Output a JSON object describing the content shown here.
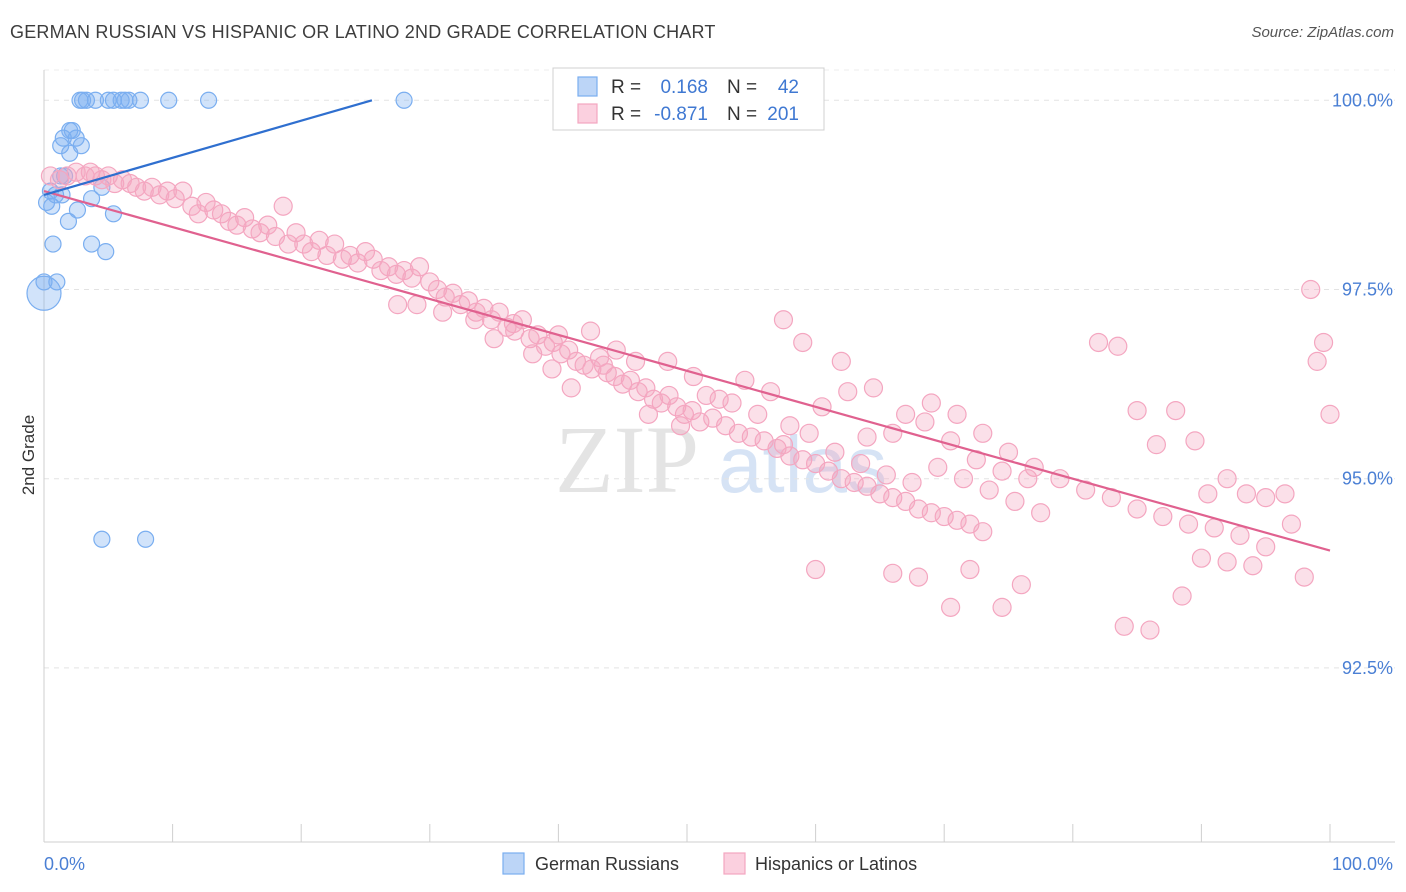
{
  "title": "GERMAN RUSSIAN VS HISPANIC OR LATINO 2ND GRADE CORRELATION CHART",
  "source": "Source: ZipAtlas.com",
  "watermark": {
    "zip": "ZIP",
    "atlas": "atlas"
  },
  "chart_data": {
    "type": "scatter",
    "xlabel": "",
    "ylabel": "2nd Grade",
    "xlim": [
      0,
      100
    ],
    "ylim": [
      90.2,
      100.4
    ],
    "x_tick_labels": [
      "0.0%",
      "100.0%"
    ],
    "y_ticks": [
      92.5,
      95.0,
      97.5,
      100.0
    ],
    "y_tick_labels": [
      "92.5%",
      "95.0%",
      "97.5%",
      "100.0%"
    ],
    "grid": true,
    "legend": {
      "placement": "top-center",
      "rows": [
        {
          "r_label": "R =",
          "r": "0.168",
          "n_label": "N =",
          "n": "42"
        },
        {
          "r_label": "R =",
          "r": "-0.871",
          "n_label": "N =",
          "n": "201"
        }
      ]
    },
    "series": [
      {
        "name": "German Russians",
        "color": "#7aaef0",
        "line_color": "#2f6fcf",
        "R": 0.168,
        "N": 42,
        "trend": {
          "x": [
            0,
            25.5
          ],
          "y": [
            98.75,
            100.0
          ]
        },
        "points": [
          [
            2.8,
            100.0
          ],
          [
            3.0,
            100.0
          ],
          [
            3.3,
            100.0
          ],
          [
            4.0,
            100.0
          ],
          [
            5.0,
            100.0
          ],
          [
            5.4,
            100.0
          ],
          [
            6.0,
            100.0
          ],
          [
            6.3,
            100.0
          ],
          [
            6.6,
            100.0
          ],
          [
            7.5,
            100.0
          ],
          [
            9.7,
            100.0
          ],
          [
            12.8,
            100.0
          ],
          [
            28.0,
            100.0
          ],
          [
            2.0,
            99.6
          ],
          [
            2.2,
            99.6
          ],
          [
            1.5,
            99.5
          ],
          [
            2.5,
            99.5
          ],
          [
            1.3,
            99.4
          ],
          [
            2.9,
            99.4
          ],
          [
            2.0,
            99.3
          ],
          [
            1.3,
            99.0
          ],
          [
            1.6,
            99.0
          ],
          [
            4.5,
            98.85
          ],
          [
            0.5,
            98.8
          ],
          [
            0.9,
            98.75
          ],
          [
            1.4,
            98.75
          ],
          [
            3.7,
            98.7
          ],
          [
            0.2,
            98.65
          ],
          [
            0.6,
            98.6
          ],
          [
            2.6,
            98.55
          ],
          [
            5.4,
            98.5
          ],
          [
            1.9,
            98.4
          ],
          [
            0.7,
            98.1
          ],
          [
            3.7,
            98.1
          ],
          [
            4.8,
            98.0
          ],
          [
            0.0,
            97.6
          ],
          [
            1.0,
            97.6
          ],
          [
            0.0,
            97.45
          ],
          [
            4.5,
            94.2
          ],
          [
            7.9,
            94.2
          ]
        ]
      },
      {
        "name": "Hispanics or Latinos",
        "color": "#f4a6c0",
        "line_color": "#e0618f",
        "R": -0.871,
        "N": 201,
        "trend": {
          "x": [
            0,
            100
          ],
          "y": [
            98.8,
            94.05
          ]
        },
        "points": [
          [
            0.5,
            99.0
          ],
          [
            1.2,
            98.95
          ],
          [
            1.8,
            99.0
          ],
          [
            2.5,
            99.05
          ],
          [
            3.2,
            99.0
          ],
          [
            3.6,
            99.05
          ],
          [
            4.0,
            99.0
          ],
          [
            4.5,
            98.95
          ],
          [
            5.0,
            99.0
          ],
          [
            5.5,
            98.9
          ],
          [
            6.1,
            98.95
          ],
          [
            6.7,
            98.9
          ],
          [
            7.2,
            98.85
          ],
          [
            7.8,
            98.8
          ],
          [
            8.4,
            98.85
          ],
          [
            9.0,
            98.75
          ],
          [
            9.6,
            98.8
          ],
          [
            10.2,
            98.7
          ],
          [
            10.8,
            98.8
          ],
          [
            11.5,
            98.6
          ],
          [
            12.0,
            98.5
          ],
          [
            12.6,
            98.65
          ],
          [
            13.2,
            98.55
          ],
          [
            13.8,
            98.5
          ],
          [
            14.4,
            98.4
          ],
          [
            15.0,
            98.35
          ],
          [
            15.6,
            98.45
          ],
          [
            16.2,
            98.3
          ],
          [
            16.8,
            98.25
          ],
          [
            17.4,
            98.35
          ],
          [
            18.0,
            98.2
          ],
          [
            18.6,
            98.6
          ],
          [
            19.0,
            98.1
          ],
          [
            19.6,
            98.25
          ],
          [
            20.2,
            98.1
          ],
          [
            20.8,
            98.0
          ],
          [
            21.4,
            98.15
          ],
          [
            22.0,
            97.95
          ],
          [
            22.6,
            98.1
          ],
          [
            23.2,
            97.9
          ],
          [
            23.8,
            97.95
          ],
          [
            24.4,
            97.85
          ],
          [
            25.0,
            98.0
          ],
          [
            25.6,
            97.9
          ],
          [
            26.2,
            97.75
          ],
          [
            26.8,
            97.8
          ],
          [
            27.4,
            97.7
          ],
          [
            28.0,
            97.75
          ],
          [
            28.6,
            97.65
          ],
          [
            29.2,
            97.8
          ],
          [
            30.0,
            97.6
          ],
          [
            30.6,
            97.5
          ],
          [
            31.2,
            97.4
          ],
          [
            31.8,
            97.45
          ],
          [
            32.4,
            97.3
          ],
          [
            33.0,
            97.35
          ],
          [
            33.6,
            97.2
          ],
          [
            34.2,
            97.25
          ],
          [
            34.8,
            97.1
          ],
          [
            35.4,
            97.2
          ],
          [
            36.0,
            97.0
          ],
          [
            36.6,
            96.95
          ],
          [
            37.2,
            97.1
          ],
          [
            37.8,
            96.85
          ],
          [
            38.4,
            96.9
          ],
          [
            39.0,
            96.75
          ],
          [
            39.6,
            96.8
          ],
          [
            40.2,
            96.65
          ],
          [
            40.8,
            96.7
          ],
          [
            41.4,
            96.55
          ],
          [
            42.0,
            96.5
          ],
          [
            42.6,
            96.45
          ],
          [
            43.2,
            96.6
          ],
          [
            43.8,
            96.4
          ],
          [
            44.4,
            96.35
          ],
          [
            45.0,
            96.25
          ],
          [
            45.6,
            96.3
          ],
          [
            46.2,
            96.15
          ],
          [
            46.8,
            96.2
          ],
          [
            47.4,
            96.05
          ],
          [
            48.0,
            96.0
          ],
          [
            48.6,
            96.1
          ],
          [
            49.2,
            95.95
          ],
          [
            49.8,
            95.85
          ],
          [
            50.4,
            95.9
          ],
          [
            51.0,
            95.75
          ],
          [
            52.0,
            95.8
          ],
          [
            53.0,
            95.7
          ],
          [
            54.0,
            95.6
          ],
          [
            55.0,
            95.55
          ],
          [
            56.0,
            95.5
          ],
          [
            57.0,
            95.4
          ],
          [
            58.0,
            95.3
          ],
          [
            59.0,
            95.25
          ],
          [
            60.0,
            95.2
          ],
          [
            61.0,
            95.1
          ],
          [
            62.0,
            95.0
          ],
          [
            63.0,
            94.95
          ],
          [
            64.0,
            94.9
          ],
          [
            65.0,
            94.8
          ],
          [
            66.0,
            94.75
          ],
          [
            67.0,
            94.7
          ],
          [
            68.0,
            94.6
          ],
          [
            69.0,
            94.55
          ],
          [
            70.0,
            94.5
          ],
          [
            71.0,
            94.45
          ],
          [
            72.0,
            94.4
          ],
          [
            73.0,
            94.3
          ],
          [
            29.0,
            97.3
          ],
          [
            31.0,
            97.2
          ],
          [
            33.5,
            97.1
          ],
          [
            36.5,
            97.05
          ],
          [
            38.0,
            96.65
          ],
          [
            40.0,
            96.9
          ],
          [
            42.5,
            96.95
          ],
          [
            44.5,
            96.7
          ],
          [
            46.0,
            96.55
          ],
          [
            48.5,
            96.55
          ],
          [
            50.5,
            96.35
          ],
          [
            52.5,
            96.05
          ],
          [
            54.5,
            96.3
          ],
          [
            56.5,
            96.15
          ],
          [
            58.0,
            95.7
          ],
          [
            60.5,
            95.95
          ],
          [
            62.5,
            96.15
          ],
          [
            64.0,
            95.55
          ],
          [
            66.0,
            95.6
          ],
          [
            68.5,
            95.75
          ],
          [
            70.5,
            95.5
          ],
          [
            72.5,
            95.25
          ],
          [
            74.5,
            95.1
          ],
          [
            76.5,
            95.0
          ],
          [
            27.5,
            97.3
          ],
          [
            35.0,
            96.85
          ],
          [
            39.5,
            96.45
          ],
          [
            41.0,
            96.2
          ],
          [
            43.5,
            96.5
          ],
          [
            47.0,
            95.85
          ],
          [
            49.5,
            95.7
          ],
          [
            51.5,
            96.1
          ],
          [
            53.5,
            96.0
          ],
          [
            55.5,
            95.85
          ],
          [
            57.5,
            95.45
          ],
          [
            59.5,
            95.6
          ],
          [
            61.5,
            95.35
          ],
          [
            63.5,
            95.2
          ],
          [
            65.5,
            95.05
          ],
          [
            67.5,
            94.95
          ],
          [
            69.5,
            95.15
          ],
          [
            71.5,
            95.0
          ],
          [
            73.5,
            94.85
          ],
          [
            75.5,
            94.7
          ],
          [
            77.5,
            94.55
          ],
          [
            57.5,
            97.1
          ],
          [
            59.0,
            96.8
          ],
          [
            62.0,
            96.55
          ],
          [
            64.5,
            96.2
          ],
          [
            67.0,
            95.85
          ],
          [
            69.0,
            96.0
          ],
          [
            71.0,
            95.85
          ],
          [
            73.0,
            95.6
          ],
          [
            75.0,
            95.35
          ],
          [
            77.0,
            95.15
          ],
          [
            79.0,
            95.0
          ],
          [
            81.0,
            94.85
          ],
          [
            83.0,
            94.75
          ],
          [
            85.0,
            94.6
          ],
          [
            87.0,
            94.5
          ],
          [
            89.0,
            94.4
          ],
          [
            91.0,
            94.35
          ],
          [
            93.0,
            94.25
          ],
          [
            95.0,
            94.1
          ],
          [
            97.0,
            94.4
          ],
          [
            82.0,
            96.8
          ],
          [
            83.5,
            96.75
          ],
          [
            85.0,
            95.9
          ],
          [
            86.5,
            95.45
          ],
          [
            88.0,
            95.9
          ],
          [
            89.5,
            95.5
          ],
          [
            90.5,
            94.8
          ],
          [
            92.0,
            95.0
          ],
          [
            93.5,
            94.8
          ],
          [
            95.0,
            94.75
          ],
          [
            96.5,
            94.8
          ],
          [
            98.0,
            93.7
          ],
          [
            99.5,
            96.8
          ],
          [
            99.0,
            96.55
          ],
          [
            98.5,
            97.5
          ],
          [
            100.0,
            95.85
          ],
          [
            60.0,
            93.8
          ],
          [
            66.0,
            93.75
          ],
          [
            68.0,
            93.7
          ],
          [
            70.5,
            93.3
          ],
          [
            72.0,
            93.8
          ],
          [
            74.5,
            93.3
          ],
          [
            76.0,
            93.6
          ],
          [
            84.0,
            93.05
          ],
          [
            86.0,
            93.0
          ],
          [
            88.5,
            93.45
          ],
          [
            90.0,
            93.95
          ],
          [
            92.0,
            93.9
          ],
          [
            94.0,
            93.85
          ]
        ]
      }
    ]
  },
  "bottom_legend": [
    {
      "label": "German Russians",
      "color": "#7aaef0"
    },
    {
      "label": "Hispanics or Latinos",
      "color": "#f4a6c0"
    }
  ]
}
